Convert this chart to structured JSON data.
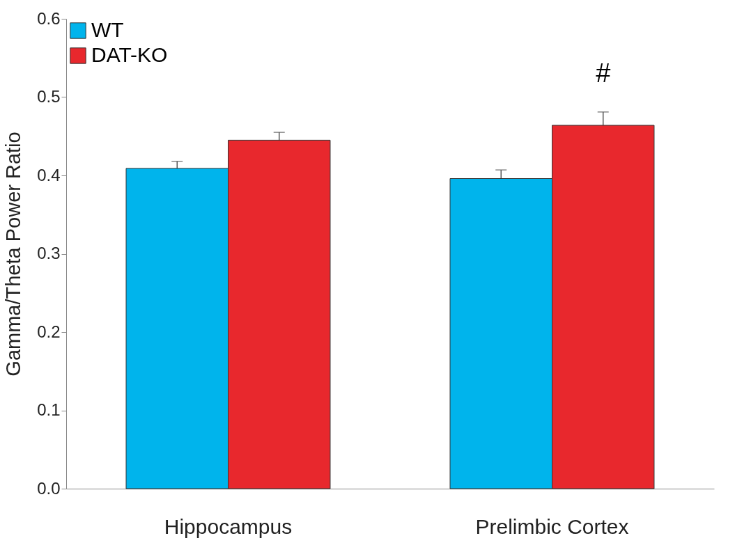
{
  "chart_data": {
    "type": "bar",
    "ylabel": "Gamma/Theta Power Ratio",
    "categories": [
      "Hippocampus",
      "Prelimbic Cortex"
    ],
    "series": [
      {
        "name": "WT",
        "color": "#00b4ec",
        "values": [
          0.409,
          0.396
        ],
        "errors": [
          0.009,
          0.011
        ]
      },
      {
        "name": "DAT-KO",
        "color": "#e8282d",
        "values": [
          0.445,
          0.464
        ],
        "errors": [
          0.01,
          0.017
        ]
      }
    ],
    "ylim": [
      0,
      0.6
    ],
    "yticks": [
      {
        "value": 0,
        "label": "0.0"
      },
      0.1,
      0.2,
      0.3,
      0.4,
      0.5,
      0.6
    ],
    "annotations": [
      "#"
    ],
    "legend": "top left",
    "grid": false
  }
}
